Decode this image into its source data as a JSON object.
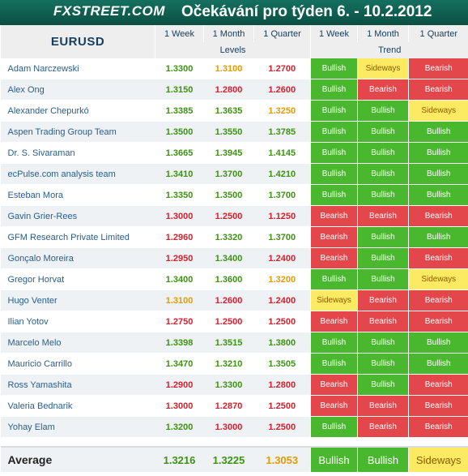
{
  "header": {
    "logo": "FXSTREET.COM",
    "title": "Očekávání pro týden 6. - 10.2.2012"
  },
  "table": {
    "pair": "EURUSD",
    "columns": [
      "1 Week",
      "1 Month",
      "1 Quarter",
      "1 Week",
      "1 Month",
      "1 Quarter"
    ],
    "group_levels": "Levels",
    "group_trend": "Trend",
    "colors": {
      "bullish": "#4ab82e",
      "bearish": "#e3474c",
      "sideways": "#fbea62",
      "above": "#3d9212",
      "below": "#d61f2b",
      "flat": "#e39b00"
    },
    "rows": [
      {
        "name": "Adam Narczewski",
        "levels": [
          "1.3300",
          "1.3100",
          "1.2700"
        ],
        "lc": [
          "green",
          "orange",
          "red"
        ],
        "trend": [
          "Bullish",
          "Sideways",
          "Bearish"
        ]
      },
      {
        "name": "Alex Ong",
        "levels": [
          "1.3150",
          "1.2800",
          "1.2600"
        ],
        "lc": [
          "green",
          "red",
          "red"
        ],
        "trend": [
          "Bullish",
          "Bearish",
          "Bearish"
        ]
      },
      {
        "name": "Alexander Chepurkó",
        "levels": [
          "1.3385",
          "1.3635",
          "1.3250"
        ],
        "lc": [
          "green",
          "green",
          "orange"
        ],
        "trend": [
          "Bullish",
          "Bullish",
          "Sideways"
        ]
      },
      {
        "name": "Aspen Trading Group Team",
        "levels": [
          "1.3500",
          "1.3550",
          "1.3785"
        ],
        "lc": [
          "green",
          "green",
          "green"
        ],
        "trend": [
          "Bullish",
          "Bullish",
          "Bullish"
        ]
      },
      {
        "name": "Dr. S. Sivaraman",
        "levels": [
          "1.3665",
          "1.3945",
          "1.4145"
        ],
        "lc": [
          "green",
          "green",
          "green"
        ],
        "trend": [
          "Bullish",
          "Bullish",
          "Bullish"
        ]
      },
      {
        "name": "ecPulse.com analysis team",
        "levels": [
          "1.3410",
          "1.3700",
          "1.4210"
        ],
        "lc": [
          "green",
          "green",
          "green"
        ],
        "trend": [
          "Bullish",
          "Bullish",
          "Bullish"
        ]
      },
      {
        "name": "Esteban Mora",
        "levels": [
          "1.3350",
          "1.3500",
          "1.3700"
        ],
        "lc": [
          "green",
          "green",
          "green"
        ],
        "trend": [
          "Bullish",
          "Bullish",
          "Bullish"
        ]
      },
      {
        "name": "Gavin Grier-Rees",
        "levels": [
          "1.3000",
          "1.2500",
          "1.1250"
        ],
        "lc": [
          "red",
          "red",
          "red"
        ],
        "trend": [
          "Bearish",
          "Bearish",
          "Bearish"
        ]
      },
      {
        "name": "GFM Research Private Limited",
        "levels": [
          "1.2960",
          "1.3320",
          "1.3700"
        ],
        "lc": [
          "red",
          "green",
          "green"
        ],
        "trend": [
          "Bearish",
          "Bullish",
          "Bullish"
        ]
      },
      {
        "name": "Gonçalo Moreira",
        "levels": [
          "1.2950",
          "1.3400",
          "1.2400"
        ],
        "lc": [
          "red",
          "green",
          "red"
        ],
        "trend": [
          "Bearish",
          "Bullish",
          "Bearish"
        ]
      },
      {
        "name": "Gregor Horvat",
        "levels": [
          "1.3400",
          "1.3600",
          "1.3200"
        ],
        "lc": [
          "green",
          "green",
          "orange"
        ],
        "trend": [
          "Bullish",
          "Bullish",
          "Sideways"
        ]
      },
      {
        "name": "Hugo Venter",
        "levels": [
          "1.3100",
          "1.2600",
          "1.2400"
        ],
        "lc": [
          "orange",
          "red",
          "red"
        ],
        "trend": [
          "Sideways",
          "Bearish",
          "Bearish"
        ]
      },
      {
        "name": "Ilian Yotov",
        "levels": [
          "1.2750",
          "1.2500",
          "1.2500"
        ],
        "lc": [
          "red",
          "red",
          "red"
        ],
        "trend": [
          "Bearish",
          "Bearish",
          "Bearish"
        ]
      },
      {
        "name": "Marcelo Melo",
        "levels": [
          "1.3398",
          "1.3515",
          "1.3800"
        ],
        "lc": [
          "green",
          "green",
          "green"
        ],
        "trend": [
          "Bullish",
          "Bullish",
          "Bullish"
        ]
      },
      {
        "name": "Mauricio Carrillo",
        "levels": [
          "1.3470",
          "1.3210",
          "1.3505"
        ],
        "lc": [
          "green",
          "green",
          "green"
        ],
        "trend": [
          "Bullish",
          "Bullish",
          "Bullish"
        ]
      },
      {
        "name": "Ross Yamashita",
        "levels": [
          "1.2900",
          "1.3300",
          "1.2800"
        ],
        "lc": [
          "red",
          "green",
          "red"
        ],
        "trend": [
          "Bearish",
          "Bullish",
          "Bearish"
        ]
      },
      {
        "name": "Valeria Bednarik",
        "levels": [
          "1.3000",
          "1.2870",
          "1.2500"
        ],
        "lc": [
          "red",
          "red",
          "red"
        ],
        "trend": [
          "Bearish",
          "Bearish",
          "Bearish"
        ]
      },
      {
        "name": "Yohay Elam",
        "levels": [
          "1.3200",
          "1.3000",
          "1.2500"
        ],
        "lc": [
          "green",
          "red",
          "red"
        ],
        "trend": [
          "Bullish",
          "Bearish",
          "Bearish"
        ]
      }
    ],
    "average": {
      "label": "Average",
      "levels": [
        "1.3216",
        "1.3225",
        "1.3053"
      ],
      "lc": [
        "green",
        "green",
        "orange"
      ],
      "trend": [
        "Bullish",
        "Bullish",
        "Sideways"
      ]
    }
  }
}
